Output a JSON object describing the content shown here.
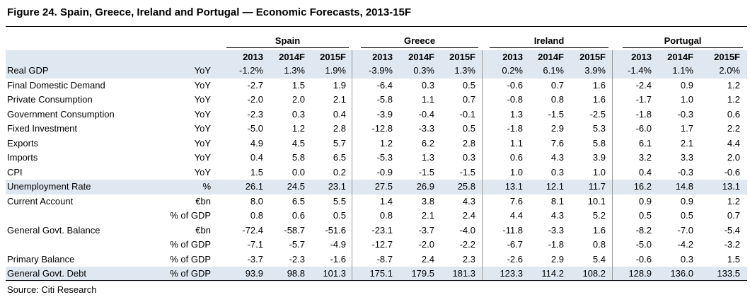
{
  "title": "Figure 24. Spain, Greece, Ireland and Portugal — Economic Forecasts, 2013-15F",
  "source": "Source: Citi Research",
  "colors": {
    "band": "#dfe7f0",
    "text": "#000000"
  },
  "countries": [
    "Spain",
    "Greece",
    "Ireland",
    "Portugal"
  ],
  "years": [
    "2013",
    "2014F",
    "2015F"
  ],
  "rows": [
    {
      "label": "Real GDP",
      "unit": "YoY",
      "values": [
        [
          "-1.2%",
          "1.3%",
          "1.9%"
        ],
        [
          "-3.9%",
          "0.3%",
          "1.3%"
        ],
        [
          "0.2%",
          "6.1%",
          "3.9%"
        ],
        [
          "-1.4%",
          "1.1%",
          "2.0%"
        ]
      ]
    },
    {
      "label": "Final Domestic Demand",
      "unit": "YoY",
      "values": [
        [
          "-2.7",
          "1.5",
          "1.9"
        ],
        [
          "-6.4",
          "0.3",
          "0.5"
        ],
        [
          "-0.6",
          "0.7",
          "1.6"
        ],
        [
          "-2.4",
          "0.9",
          "1.2"
        ]
      ]
    },
    {
      "label": "Private Consumption",
      "unit": "YoY",
      "values": [
        [
          "-2.0",
          "2.0",
          "2.1"
        ],
        [
          "-5.8",
          "1.1",
          "0.7"
        ],
        [
          "-0.8",
          "0.8",
          "1.6"
        ],
        [
          "-1.7",
          "1.0",
          "1.2"
        ]
      ]
    },
    {
      "label": "Government Consumption",
      "unit": "YoY",
      "values": [
        [
          "-2.3",
          "0.3",
          "0.4"
        ],
        [
          "-3.9",
          "-0.4",
          "-0.1"
        ],
        [
          "1.3",
          "-1.5",
          "-2.5"
        ],
        [
          "-1.8",
          "-0.3",
          "0.6"
        ]
      ]
    },
    {
      "label": "Fixed Investment",
      "unit": "YoY",
      "values": [
        [
          "-5.0",
          "1.2",
          "2.8"
        ],
        [
          "-12.8",
          "-3.3",
          "0.5"
        ],
        [
          "-1.8",
          "2.9",
          "5.3"
        ],
        [
          "-6.0",
          "1.7",
          "2.2"
        ]
      ]
    },
    {
      "label": "Exports",
      "unit": "YoY",
      "values": [
        [
          "4.9",
          "4.5",
          "5.7"
        ],
        [
          "1.2",
          "6.2",
          "2.8"
        ],
        [
          "1.1",
          "7.6",
          "5.8"
        ],
        [
          "6.1",
          "2.1",
          "4.4"
        ]
      ]
    },
    {
      "label": "Imports",
      "unit": "YoY",
      "values": [
        [
          "0.4",
          "5.8",
          "6.5"
        ],
        [
          "-5.3",
          "1.3",
          "0.3"
        ],
        [
          "0.6",
          "4.3",
          "3.9"
        ],
        [
          "3.2",
          "3.3",
          "2.0"
        ]
      ]
    },
    {
      "label": "CPI",
      "unit": "YoY",
      "values": [
        [
          "1.5",
          "0.0",
          "0.2"
        ],
        [
          "-0.9",
          "-1.5",
          "-1.5"
        ],
        [
          "1.0",
          "0.3",
          "1.0"
        ],
        [
          "0.4",
          "-0.3",
          "-0.6"
        ]
      ]
    },
    {
      "label": "Unemployment Rate",
      "unit": "%",
      "values": [
        [
          "26.1",
          "24.5",
          "23.1"
        ],
        [
          "27.5",
          "26.9",
          "25.8"
        ],
        [
          "13.1",
          "12.1",
          "11.7"
        ],
        [
          "16.2",
          "14.8",
          "13.1"
        ]
      ]
    },
    {
      "label": "Current Account",
      "unit": "€bn",
      "values": [
        [
          "8.0",
          "6.5",
          "5.5"
        ],
        [
          "1.4",
          "3.8",
          "4.3"
        ],
        [
          "7.6",
          "8.1",
          "10.1"
        ],
        [
          "0.9",
          "0.9",
          "1.2"
        ]
      ]
    },
    {
      "label": "",
      "unit": "% of GDP",
      "values": [
        [
          "0.8",
          "0.6",
          "0.5"
        ],
        [
          "0.8",
          "2.1",
          "2.4"
        ],
        [
          "4.4",
          "4.3",
          "5.2"
        ],
        [
          "0.5",
          "0.5",
          "0.7"
        ]
      ]
    },
    {
      "label": "General Govt. Balance",
      "unit": "€bn",
      "values": [
        [
          "-72.4",
          "-58.7",
          "-51.6"
        ],
        [
          "-23.1",
          "-3.7",
          "-4.0"
        ],
        [
          "-11.8",
          "-3.3",
          "1.6"
        ],
        [
          "-8.2",
          "-7.0",
          "-5.4"
        ]
      ]
    },
    {
      "label": "",
      "unit": "% of GDP",
      "values": [
        [
          "-7.1",
          "-5.7",
          "-4.9"
        ],
        [
          "-12.7",
          "-2.0",
          "-2.2"
        ],
        [
          "-6.7",
          "-1.8",
          "0.8"
        ],
        [
          "-5.0",
          "-4.2",
          "-3.2"
        ]
      ]
    },
    {
      "label": "Primary Balance",
      "unit": "% of GDP",
      "values": [
        [
          "-3.7",
          "-2.3",
          "-1.6"
        ],
        [
          "-8.7",
          "2.4",
          "2.3"
        ],
        [
          "-2.6",
          "2.9",
          "5.4"
        ],
        [
          "-0.6",
          "0.3",
          "1.5"
        ]
      ]
    },
    {
      "label": "General Govt. Debt",
      "unit": "% of GDP",
      "values": [
        [
          "93.9",
          "98.8",
          "101.3"
        ],
        [
          "175.1",
          "179.5",
          "181.3"
        ],
        [
          "123.3",
          "114.2",
          "108.2"
        ],
        [
          "128.9",
          "136.0",
          "133.5"
        ]
      ]
    }
  ]
}
